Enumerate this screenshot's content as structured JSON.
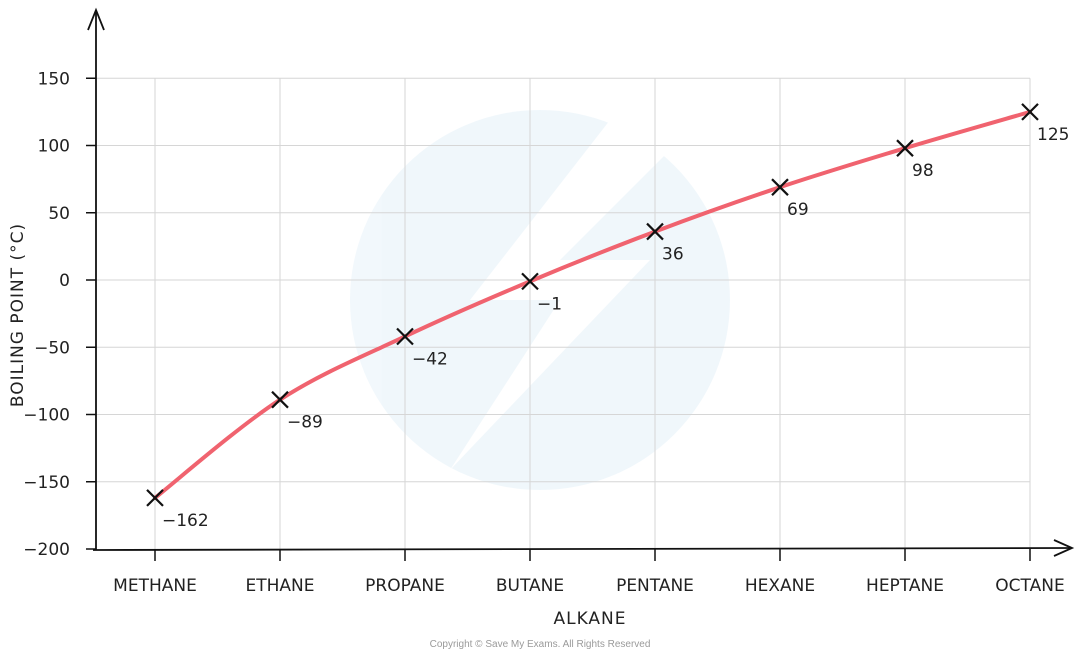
{
  "chart_data": {
    "type": "line",
    "categories": [
      "METHANE",
      "ETHANE",
      "PROPANE",
      "BUTANE",
      "PENTANE",
      "HEXANE",
      "HEPTANE",
      "OCTANE"
    ],
    "values": [
      -162,
      -89,
      -42,
      -1,
      36,
      69,
      98,
      125
    ],
    "data_labels": [
      "−162",
      "−89",
      "−42",
      "−1",
      "36",
      "69",
      "98",
      "125"
    ],
    "xlabel": "ALKANE",
    "ylabel": "BOILING  POINT  (°C)",
    "ylim": [
      -200,
      150
    ],
    "yticks": [
      150,
      100,
      50,
      0,
      -50,
      -100,
      -150,
      -200
    ],
    "ytick_labels": [
      "150",
      "100",
      "50",
      "0",
      "−50",
      "−100",
      "−150",
      "−200"
    ],
    "grid": true,
    "line_color": "#f0636f",
    "marker": "cross"
  },
  "footer": {
    "copyright": "Copyright © Save My Exams. All Rights Reserved"
  }
}
